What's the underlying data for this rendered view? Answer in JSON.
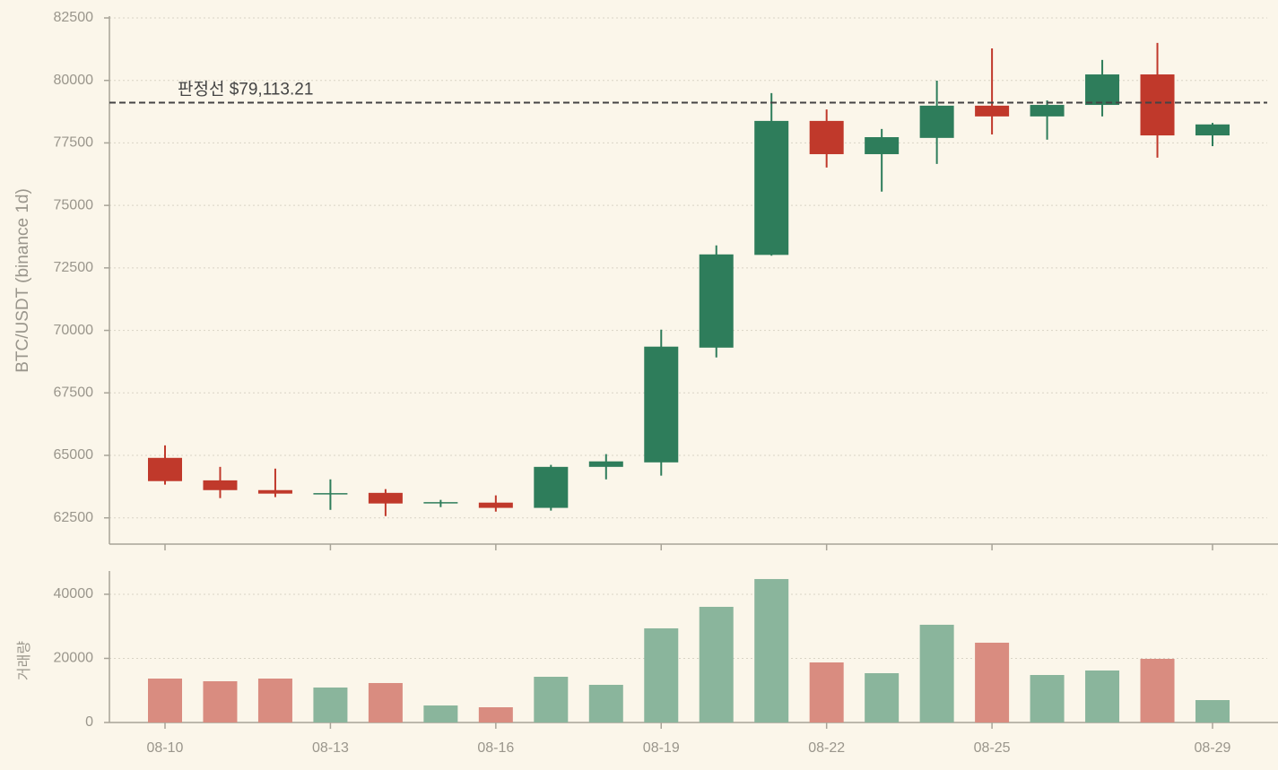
{
  "chart_data": [
    {
      "type": "candlestick",
      "y_label": "BTC/USDT (binance 1d)",
      "ylim": [
        61450,
        82500
      ],
      "yticks": [
        62500,
        65000,
        67500,
        70000,
        72500,
        75000,
        77500,
        80000,
        82500
      ],
      "grid": true,
      "up_color": "#2e7d5b",
      "down_color": "#c0392b",
      "open": [
        64900,
        64000,
        63610,
        63450,
        63500,
        63080,
        63110,
        62900,
        64540,
        64720,
        69310,
        73020,
        78380,
        77050,
        77700,
        78990,
        78560,
        79020,
        80240,
        77800
      ],
      "high": [
        65400,
        64540,
        64470,
        64040,
        63650,
        63220,
        63400,
        64620,
        65050,
        70030,
        73400,
        79490,
        78840,
        78060,
        79990,
        81280,
        79200,
        80820,
        81500,
        78300
      ],
      "low": [
        63830,
        63290,
        63330,
        62820,
        62570,
        62930,
        62750,
        62790,
        64040,
        64190,
        68920,
        72990,
        76515,
        75550,
        76660,
        77840,
        77630,
        78560,
        76910,
        77370
      ],
      "close": [
        63970,
        63610,
        63470,
        63490,
        63075,
        63130,
        62900,
        64540,
        64760,
        69350,
        73040,
        78380,
        77050,
        77730,
        78990,
        78560,
        79020,
        80240,
        77800,
        78240
      ],
      "hline": {
        "value": 79113.21,
        "label": "판정선 $79,113.21",
        "color": "#444444"
      }
    },
    {
      "type": "bar",
      "y_label": "거래량",
      "categories": [
        "08-10",
        null,
        null,
        "08-13",
        null,
        null,
        "08-16",
        null,
        null,
        "08-19",
        null,
        null,
        "08-22",
        null,
        null,
        "08-25",
        null,
        null,
        null,
        "08-29"
      ],
      "values": [
        13700,
        12870,
        13700,
        10910,
        12310,
        5310,
        4750,
        14260,
        11750,
        29370,
        36080,
        44750,
        18740,
        15380,
        30490,
        24890,
        14820,
        16220,
        19860,
        6990
      ],
      "colors": [
        "#d98c80",
        "#d98c80",
        "#d98c80",
        "#8ab59c",
        "#d98c80",
        "#8ab59c",
        "#d98c80",
        "#8ab59c",
        "#8ab59c",
        "#8ab59c",
        "#8ab59c",
        "#8ab59c",
        "#d98c80",
        "#8ab59c",
        "#8ab59c",
        "#d98c80",
        "#8ab59c",
        "#8ab59c",
        "#d98c80",
        "#8ab59c"
      ],
      "ylim": [
        0,
        46700
      ],
      "yticks": [
        0,
        20000,
        40000
      ],
      "grid": true
    }
  ]
}
